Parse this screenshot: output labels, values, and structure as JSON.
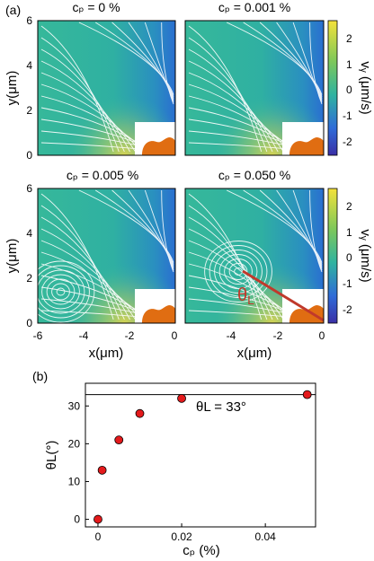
{
  "figure": {
    "label_a": "(a)",
    "label_b": "(b)"
  },
  "colors": {
    "field_low": "#3a4bd8",
    "field_mid": "#2fb3a0",
    "field_high": "#f4e23a",
    "obstacle": "#e06d12",
    "streamline": "#ffffff",
    "theta_line": "#c0392b",
    "marker": "#e41a1c"
  },
  "panel_a": {
    "type": "heatmap",
    "xlabel": "x(μm)",
    "ylabel": "y(μm)",
    "xlim": [
      -6,
      0
    ],
    "ylim": [
      0,
      6
    ],
    "xticks": [
      "-6",
      "-4",
      "-2",
      "0"
    ],
    "yticks": [
      "0",
      "2",
      "4",
      "6"
    ],
    "colorbar": {
      "label": "vᵧ (μm/s)",
      "range": [
        -2.5,
        2.5
      ],
      "ticks": [
        "2",
        "1",
        "0",
        "-1",
        "-2"
      ]
    },
    "panels": [
      {
        "title": "cₚ = 0 %",
        "vortex": null
      },
      {
        "title": "cₚ = 0.001 %",
        "vortex": null
      },
      {
        "title": "cₚ = 0.005 %",
        "vortex": [
          -5,
          1.4
        ]
      },
      {
        "title": "cₚ = 0.050 %",
        "vortex": [
          -3.7,
          2.3
        ]
      }
    ],
    "theta_label": "θL"
  },
  "chart_data": {
    "type": "scatter",
    "xlabel": "cₚ (%)",
    "ylabel": "θL(°)",
    "xlim": [
      -0.003,
      0.052
    ],
    "ylim": [
      -2,
      36
    ],
    "xticks": [
      0,
      0.02,
      0.04
    ],
    "xtick_labels": [
      "0",
      "0.02",
      "0.04"
    ],
    "yticks": [
      0,
      10,
      20,
      30
    ],
    "ytick_labels": [
      "0",
      "10",
      "20",
      "30"
    ],
    "series": [
      {
        "x": [
          0,
          0.001,
          0.005,
          0.01,
          0.02,
          0.05
        ],
        "y": [
          0,
          13,
          21,
          28,
          32,
          33
        ]
      }
    ],
    "reference_line": {
      "y": 33,
      "label": "θL = 33°"
    }
  }
}
